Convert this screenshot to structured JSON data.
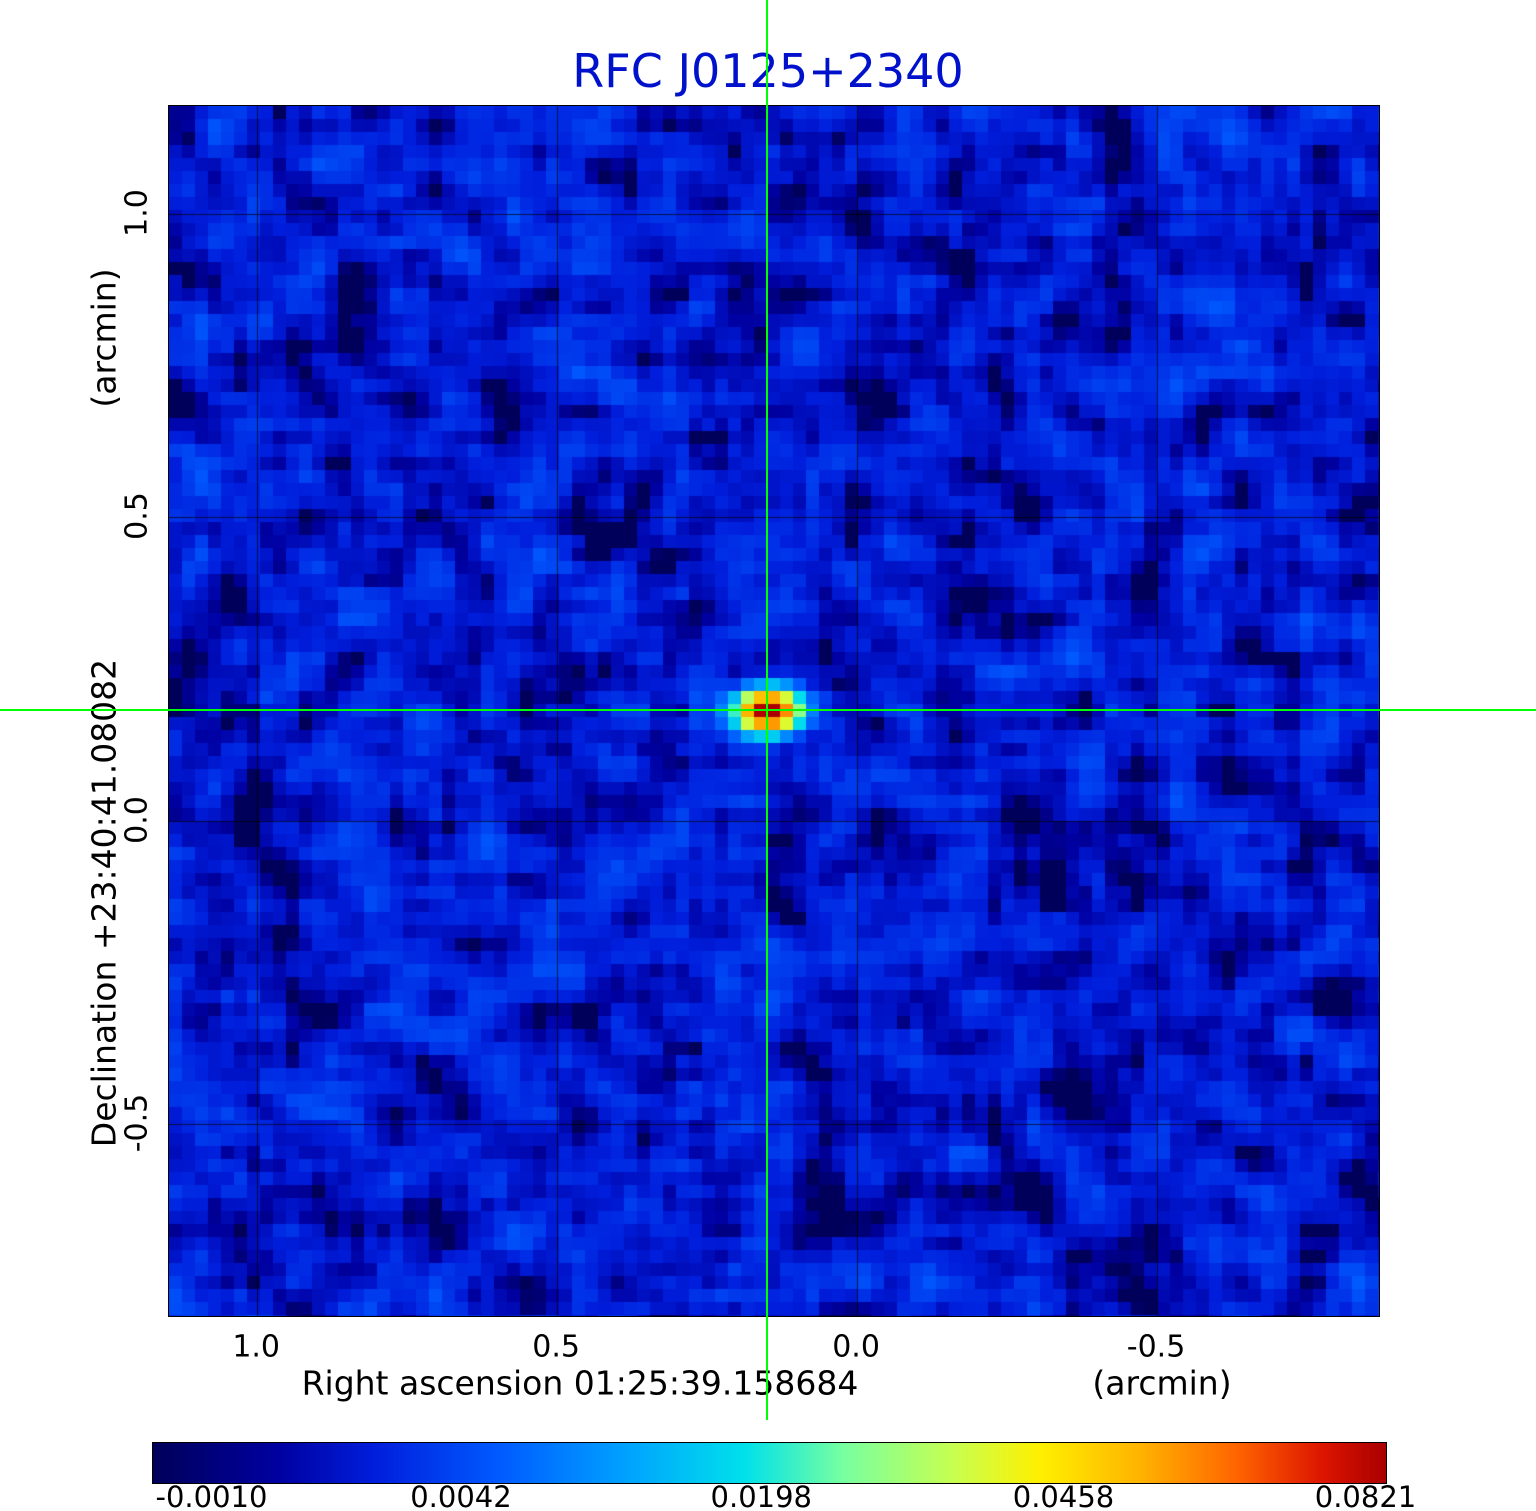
{
  "title": "RFC J0125+2340",
  "colors": {
    "title": "#0011cc",
    "axis_text": "#000000",
    "crosshair": "#00ff00",
    "grid": "#000000"
  },
  "y_axis": {
    "label": "Declination  +23:40:41.08082",
    "unit": "(arcmin)",
    "tick_labels": [
      "1.0",
      "0.5",
      "0.0",
      "-0.5"
    ]
  },
  "x_axis": {
    "label": "Right ascension  01:25:39.158684",
    "unit": "(arcmin)",
    "tick_labels": [
      "1.0",
      "0.5",
      "0.0",
      "-0.5"
    ]
  },
  "chart_data": {
    "type": "heatmap",
    "title": "RFC J0125+2340",
    "x_axis": {
      "title": "Right ascension 01:25:39.158684 (arcmin)",
      "ticks": [
        1.0,
        0.5,
        0.0,
        -0.5
      ],
      "range": [
        1.147,
        -0.87
      ]
    },
    "y_axis": {
      "title": "Declination +23:40:41.08082 (arcmin)",
      "ticks": [
        1.0,
        0.5,
        0.0,
        -0.5
      ],
      "range": [
        1.178,
        -0.816
      ]
    },
    "source": {
      "ra_offset_arcmin": 0.148,
      "dec_offset_arcmin": 0.181,
      "peak_flux_jy": 0.0821,
      "shape": "elliptical-gaussian"
    },
    "background": {
      "mean_flux_jy": 0.0012,
      "rms_flux_jy": 0.0014
    },
    "crosshair": {
      "ra_offset_arcmin": 0.148,
      "dec_offset_arcmin": 0.181
    },
    "colorbar": {
      "tick_values": [
        -0.001,
        0.0042,
        0.0198,
        0.0458,
        0.0821
      ],
      "tick_labels": [
        "-0.0010",
        "0.0042",
        "0.0198",
        "0.0458",
        "0.0821"
      ],
      "scale": "sqrt",
      "offset": 0.0012,
      "span": 0.086
    },
    "colormap_stops": [
      [
        0.0,
        "#00005a"
      ],
      [
        0.1,
        "#0000a0"
      ],
      [
        0.18,
        "#001edc"
      ],
      [
        0.28,
        "#005aff"
      ],
      [
        0.38,
        "#00a0ff"
      ],
      [
        0.48,
        "#00e1eb"
      ],
      [
        0.56,
        "#78ffa0"
      ],
      [
        0.65,
        "#c8ff50"
      ],
      [
        0.72,
        "#fff000"
      ],
      [
        0.8,
        "#ffb400"
      ],
      [
        0.88,
        "#ff6400"
      ],
      [
        0.95,
        "#dc1400"
      ],
      [
        1.0,
        "#aa0000"
      ]
    ],
    "grid": true
  }
}
